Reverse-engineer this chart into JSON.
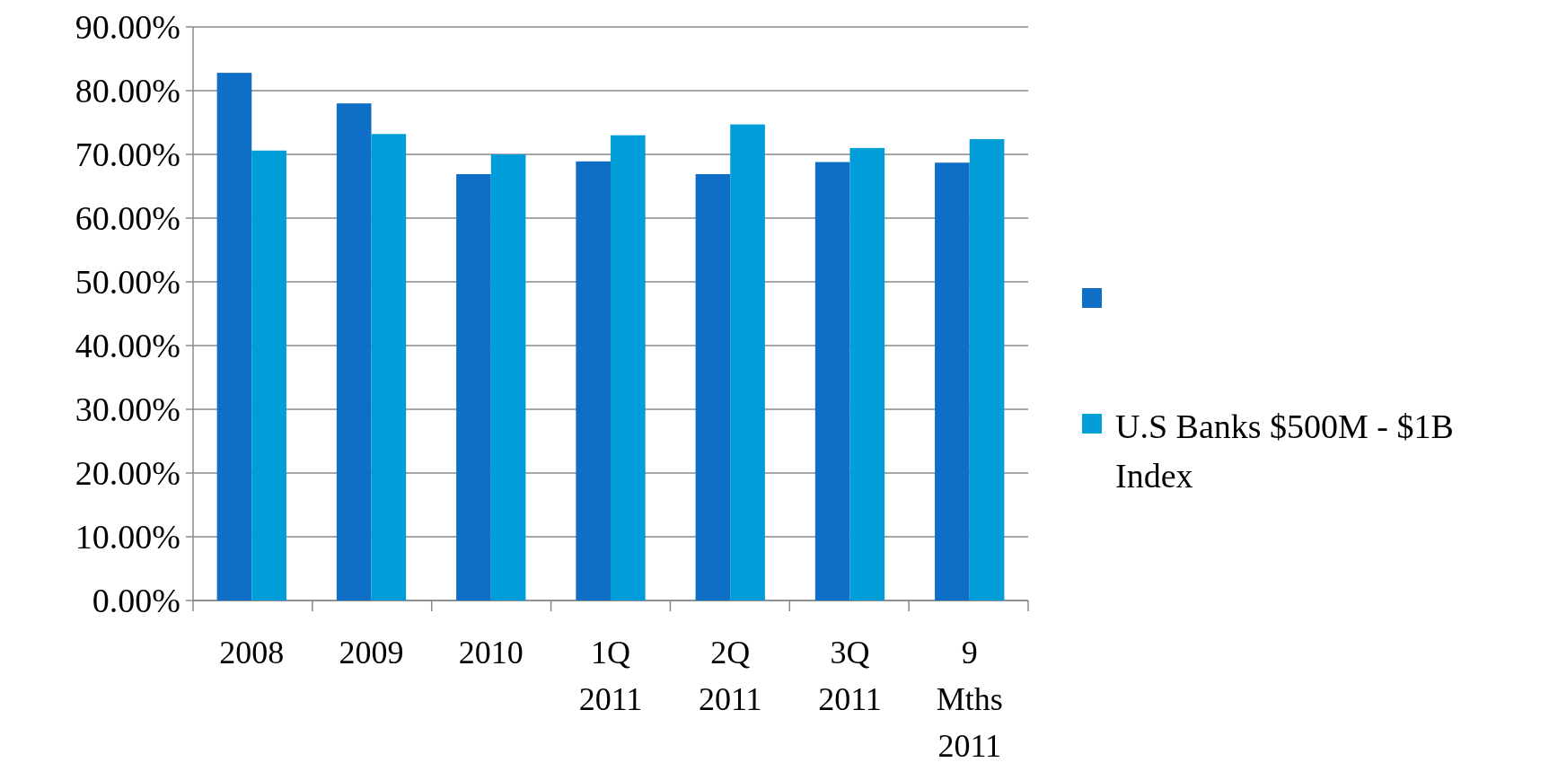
{
  "chart_data": {
    "type": "bar",
    "categories": [
      "2008",
      "2009",
      "2010",
      "1Q 2011",
      "2Q 2011",
      "3Q 2011",
      "9 Mths 2011"
    ],
    "series": [
      {
        "color": "#0f6fc6",
        "values": [
          82.8,
          78.0,
          66.9,
          68.9,
          66.9,
          68.8,
          68.7
        ]
      },
      {
        "name": "U.S Banks $500M - $1B Index",
        "color": "#009dd9",
        "values": [
          70.6,
          73.2,
          70.0,
          73.0,
          74.7,
          71.0,
          72.4
        ]
      }
    ],
    "ylim": [
      0,
      90
    ],
    "yticks": [
      {
        "value": 0,
        "label": "0.00%"
      },
      {
        "value": 10,
        "label": "10.00%"
      },
      {
        "value": 20,
        "label": "20.00%"
      },
      {
        "value": 30,
        "label": "30.00%"
      },
      {
        "value": 40,
        "label": "40.00%"
      },
      {
        "value": 50,
        "label": "50.00%"
      },
      {
        "value": 60,
        "label": "60.00%"
      },
      {
        "value": 70,
        "label": "70.00%"
      },
      {
        "value": 80,
        "label": "80.00%"
      },
      {
        "value": 90,
        "label": "90.00%"
      }
    ],
    "grid": "y",
    "legend": "right"
  }
}
